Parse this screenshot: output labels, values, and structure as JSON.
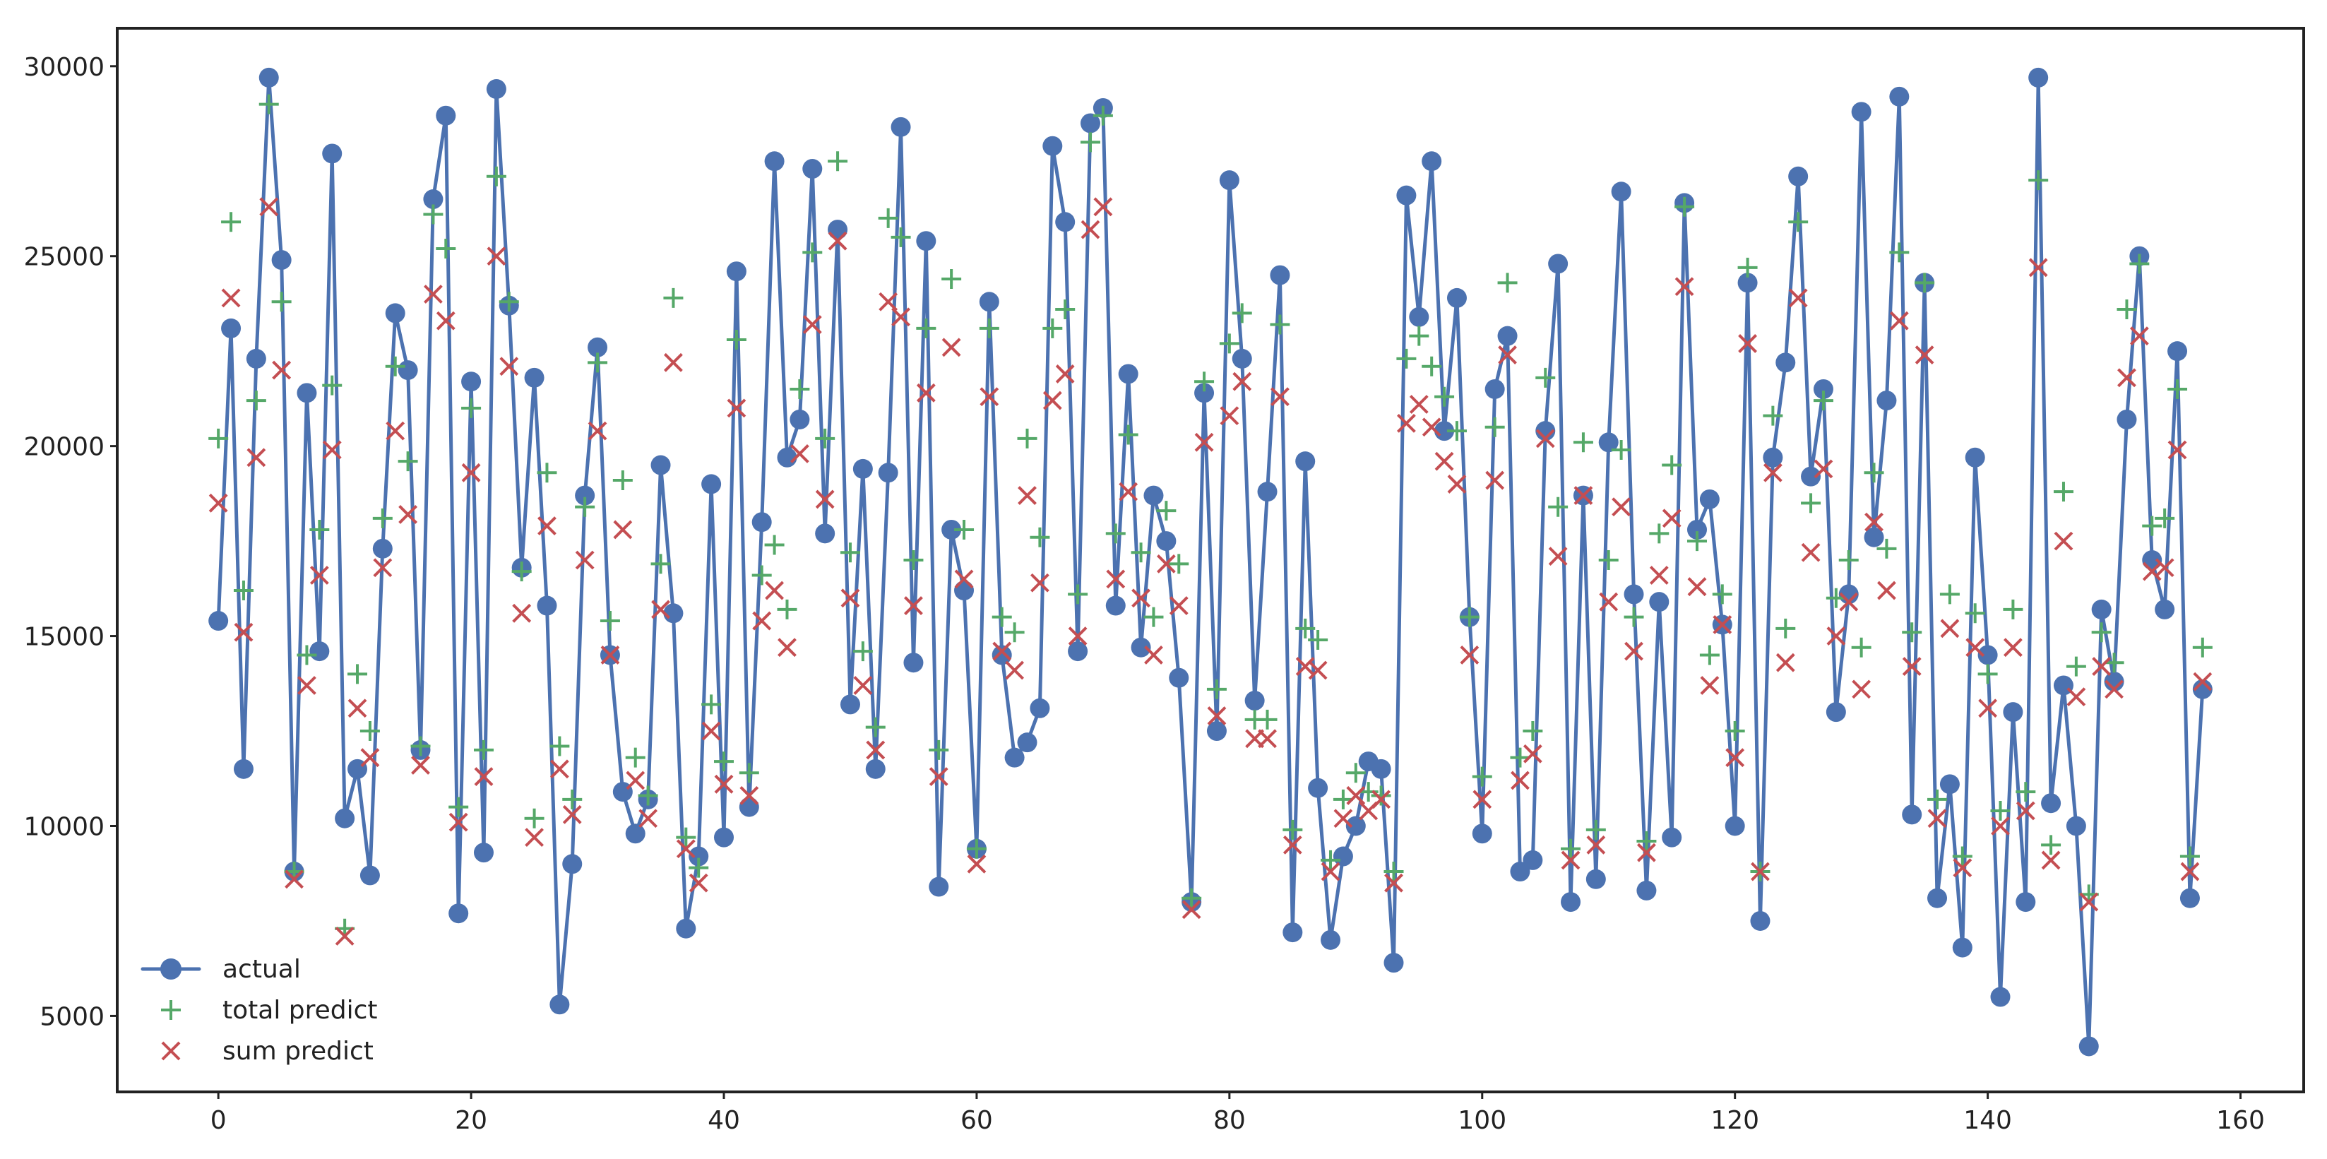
{
  "chart_data": {
    "type": "line",
    "title": "",
    "xlabel": "",
    "ylabel": "",
    "xlim": [
      -8,
      165
    ],
    "ylim": [
      3000,
      31000
    ],
    "xticks": [
      0,
      20,
      40,
      60,
      80,
      100,
      120,
      140,
      160
    ],
    "yticks": [
      5000,
      10000,
      15000,
      20000,
      25000,
      30000
    ],
    "grid": false,
    "legend_position": "lower-left",
    "series": [
      {
        "name": "actual",
        "style": "line-circle",
        "color": "#4C72B0",
        "values": [
          15400,
          23100,
          11500,
          22300,
          29700,
          24900,
          8800,
          21400,
          14600,
          27700,
          10200,
          11500,
          8700,
          17300,
          23500,
          22000,
          12000,
          26500,
          28700,
          7700,
          21700,
          9300,
          29400,
          23700,
          16800,
          21800,
          15800,
          5300,
          9000,
          18700,
          22600,
          14500,
          10900,
          9800,
          10700,
          19500,
          15600,
          7300,
          9200,
          19000,
          9700,
          24600,
          10500,
          18000,
          27500,
          19700,
          20700,
          27300,
          17700,
          25700,
          13200,
          19400,
          11500,
          19300,
          28400,
          14300,
          25400,
          8400,
          17800,
          16200,
          9400,
          23800,
          14500,
          11800,
          12200,
          13100,
          27900,
          25900,
          14600,
          28500,
          28900,
          15800,
          21900,
          14700,
          18700,
          17500,
          13900,
          8000,
          21400,
          12500,
          27000,
          22300,
          13300,
          18800,
          24500,
          7200,
          19600,
          11000,
          7000,
          9200,
          10000,
          11700,
          11500,
          6400,
          26600,
          23400,
          27500,
          20400,
          23900,
          15500,
          9800,
          21500,
          22900,
          8800,
          9100,
          20400,
          24800,
          8000,
          18700,
          8600,
          20100,
          26700,
          16100,
          8300,
          15900,
          9700,
          26400,
          17800,
          18600,
          15300,
          10000,
          24300,
          7500,
          19700,
          22200,
          27100,
          19200,
          21500,
          13000,
          16100,
          28800,
          17600,
          21200,
          29200,
          10300,
          24300,
          8100,
          11100,
          6800,
          19700,
          14500,
          5500,
          13000,
          8000,
          29700,
          10600,
          13700,
          10000,
          4200,
          15700,
          13800,
          20700,
          25000,
          17000,
          15700,
          22500,
          8100,
          13600
        ]
      },
      {
        "name": "total predict",
        "style": "marker-plus",
        "color": "#55A868",
        "values": [
          20200,
          25900,
          16200,
          21200,
          29000,
          23800,
          8800,
          14500,
          17800,
          21600,
          7300,
          14000,
          12500,
          18100,
          22100,
          19600,
          12100,
          26100,
          25200,
          10500,
          21000,
          12000,
          27100,
          23800,
          16700,
          10200,
          19300,
          12100,
          10700,
          18400,
          22200,
          15400,
          19100,
          11800,
          10800,
          16900,
          23900,
          9700,
          8900,
          13200,
          11700,
          22800,
          11400,
          16600,
          17400,
          15700,
          21500,
          25100,
          20200,
          27500,
          17200,
          14600,
          12600,
          26000,
          25500,
          17000,
          23100,
          12000,
          24400,
          17800,
          9400,
          23100,
          15500,
          15100,
          20200,
          17600,
          23100,
          23600,
          16100,
          28000,
          28700,
          17700,
          20300,
          17200,
          15500,
          18300,
          16900,
          8100,
          21700,
          13600,
          22700,
          23500,
          12800,
          12800,
          23200,
          9900,
          15200,
          14900,
          9100,
          10700,
          11400,
          10900,
          10800,
          8800,
          22300,
          22900,
          22100,
          21300,
          20400,
          15500,
          11300,
          20500,
          24300,
          11800,
          12500,
          21800,
          18400,
          9400,
          20100,
          9900,
          17000,
          19900,
          15500,
          9600,
          17700,
          19500,
          26300,
          17500,
          14500,
          16100,
          12500,
          24700,
          8800,
          20800,
          15200,
          25900,
          18500,
          21200,
          16000,
          17000,
          14700,
          19300,
          17300,
          25100,
          15100,
          24300,
          10700,
          16100,
          9200,
          15600,
          14000,
          10400,
          15700,
          10900,
          27000,
          9500,
          18800,
          14200,
          8200,
          15100,
          14300,
          23600,
          24800,
          17900,
          18100,
          21500,
          9200,
          14700
        ]
      },
      {
        "name": "sum predict",
        "style": "marker-x",
        "color": "#C44E52",
        "values": [
          18500,
          23900,
          15100,
          19700,
          26300,
          22000,
          8600,
          13700,
          16600,
          19900,
          7100,
          13100,
          11800,
          16800,
          20400,
          18200,
          11600,
          24000,
          23300,
          10100,
          19300,
          11300,
          25000,
          22100,
          15600,
          9700,
          17900,
          11500,
          10300,
          17000,
          20400,
          14500,
          17800,
          11200,
          10200,
          15700,
          22200,
          9400,
          8500,
          12500,
          11100,
          21000,
          10800,
          15400,
          16200,
          14700,
          19800,
          23200,
          18600,
          25400,
          16000,
          13700,
          12000,
          23800,
          23400,
          15800,
          21400,
          11300,
          22600,
          16500,
          9000,
          21300,
          14600,
          14100,
          18700,
          16400,
          21200,
          21900,
          15000,
          25700,
          26300,
          16500,
          18800,
          16000,
          14500,
          16900,
          15800,
          7800,
          20100,
          12900,
          20800,
          21700,
          12300,
          12300,
          21300,
          9500,
          14200,
          14100,
          8800,
          10200,
          10800,
          10400,
          10700,
          8500,
          20600,
          21100,
          20500,
          19600,
          19000,
          14500,
          10700,
          19100,
          22400,
          11200,
          11900,
          20200,
          17100,
          9100,
          18700,
          9500,
          15900,
          18400,
          14600,
          9300,
          16600,
          18100,
          24200,
          16300,
          13700,
          15300,
          11800,
          22700,
          8800,
          19300,
          14300,
          23900,
          17200,
          19400,
          15000,
          15900,
          13600,
          18000,
          16200,
          23300,
          14200,
          22400,
          10200,
          15200,
          8900,
          14700,
          13100,
          10000,
          14700,
          10400,
          24700,
          9100,
          17500,
          13400,
          8000,
          14200,
          13600,
          21800,
          22900,
          16700,
          16800,
          19900,
          8800,
          13800
        ]
      }
    ]
  }
}
